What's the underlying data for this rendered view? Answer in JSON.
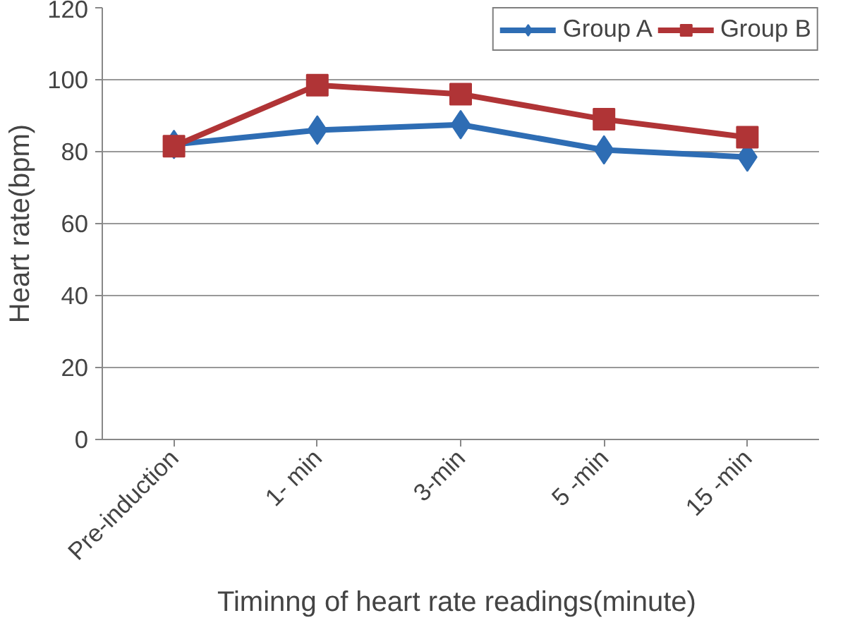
{
  "chart_data": {
    "type": "line",
    "xlabel": "Timinng of heart rate  readings(minute)",
    "ylabel": "Heart rate(bpm)",
    "categories": [
      "Pre-induction",
      "1- min",
      "3-min",
      "5 -min",
      "15 -min"
    ],
    "series": [
      {
        "name": "Group A",
        "color": "#2e6db4",
        "marker": "diamond",
        "values": [
          82,
          86,
          87.5,
          80.5,
          78.5
        ]
      },
      {
        "name": "Group B",
        "color": "#b03436",
        "marker": "square",
        "values": [
          81.5,
          98.5,
          96,
          89,
          84
        ]
      }
    ],
    "ylim": [
      0,
      120
    ],
    "yticks": [
      0,
      20,
      40,
      60,
      80,
      100,
      120
    ],
    "grid": "y",
    "legend": "top right",
    "line_style": "solid"
  }
}
